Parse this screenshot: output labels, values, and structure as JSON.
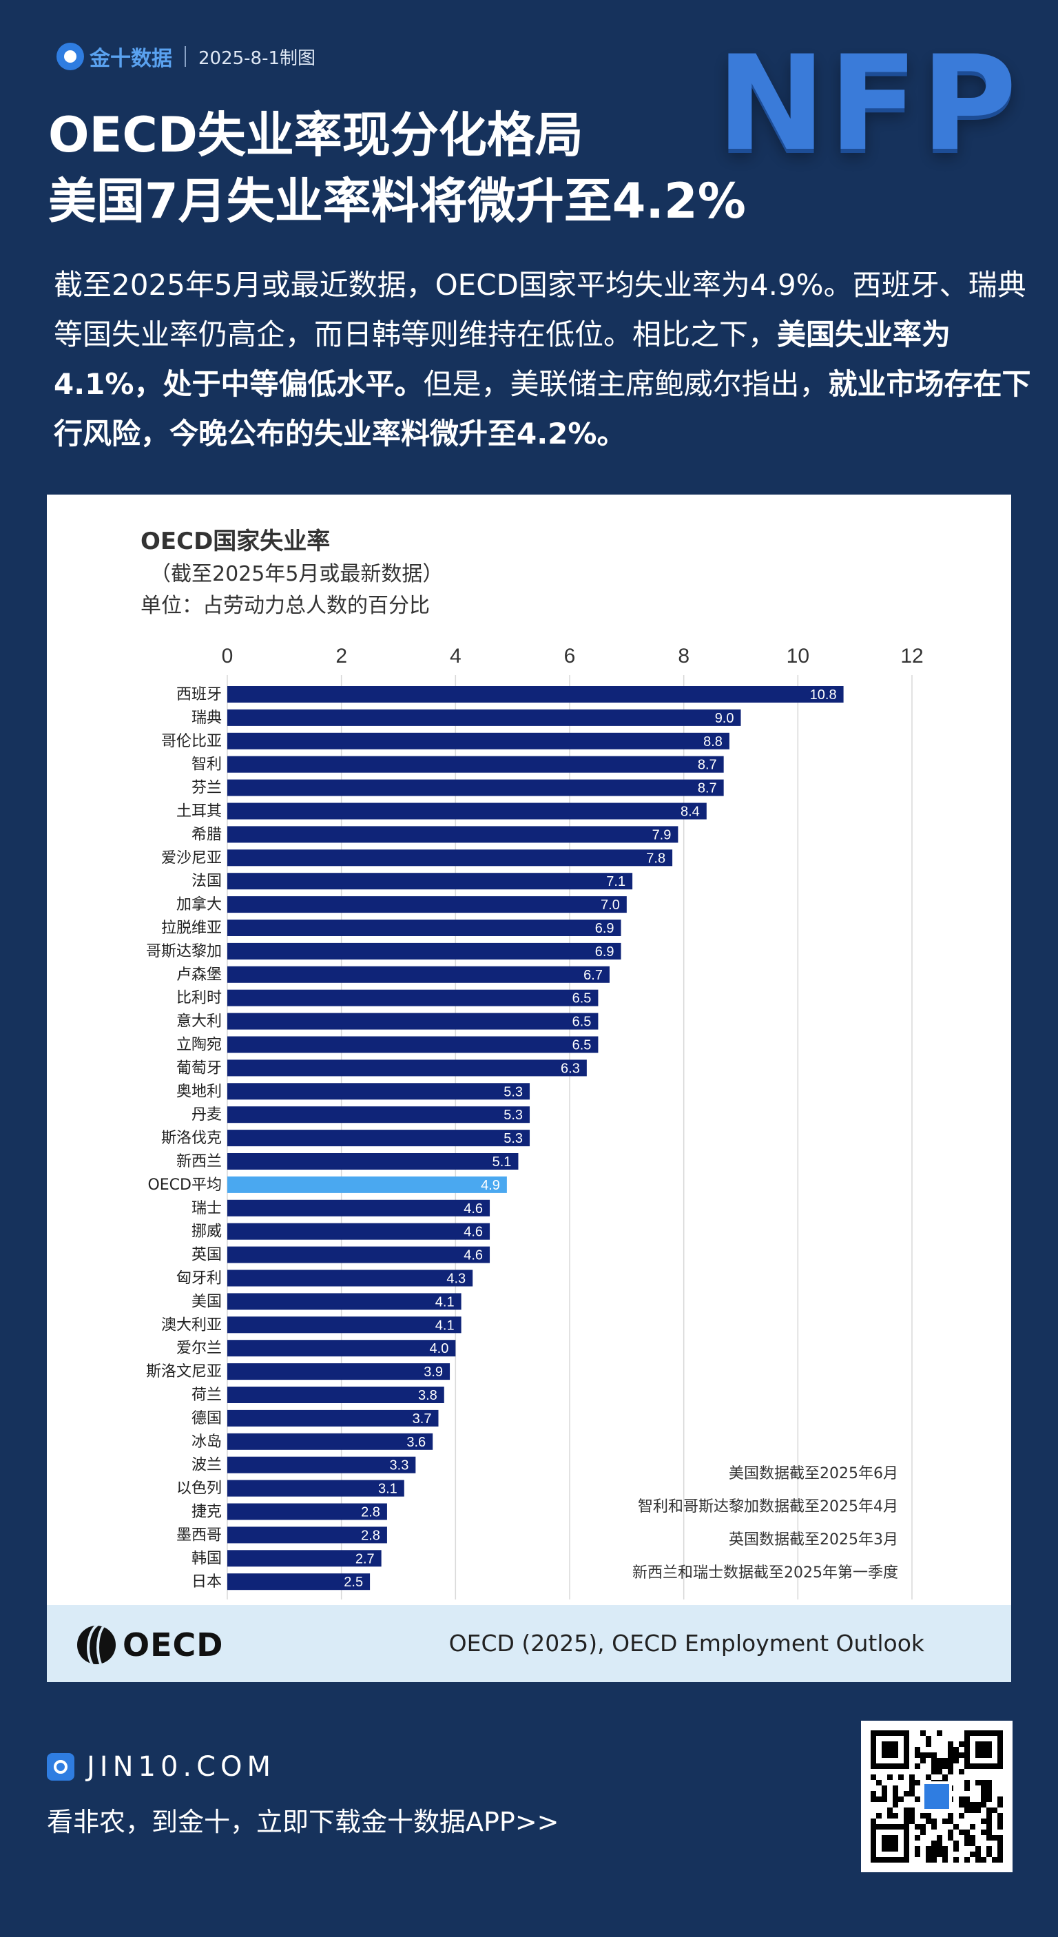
{
  "header": {
    "logo_text": "金十数据",
    "date": "2025-8-1制图",
    "badge": "NFP"
  },
  "headline": {
    "line1": "OECD失业率现分化格局",
    "line2": "美国7月失业率料将微升至4.2%"
  },
  "intro": {
    "p1": "截至2025年5月或最近数据，OECD国家平均失业率为4.9%。西班牙、瑞典等国失业率仍高企，而日韩等则维持在低位。相比之下，",
    "p2_bold": "美国失业率为4.1%，处于中等偏低水平。",
    "p3": "但是，美联储主席鲍威尔指出，",
    "p4_bold": "就业市场存在下行风险，今晚公布的失业率料微升至4.2%。"
  },
  "chart_data": {
    "type": "bar",
    "orientation": "horizontal",
    "title": "OECD国家失业率",
    "subtitle": "（截至2025年5月或最新数据）",
    "unit": "单位：占劳动力总人数的百分比",
    "xlim": [
      0,
      12
    ],
    "ticks": [
      "0",
      "2",
      "4",
      "6",
      "8",
      "10",
      "12"
    ],
    "grid": true,
    "categories": [
      "西班牙",
      "瑞典",
      "哥伦比亚",
      "智利",
      "芬兰",
      "土耳其",
      "希腊",
      "爱沙尼亚",
      "法国",
      "加拿大",
      "拉脱维亚",
      "哥斯达黎加",
      "卢森堡",
      "比利时",
      "意大利",
      "立陶宛",
      "葡萄牙",
      "奥地利",
      "丹麦",
      "斯洛伐克",
      "新西兰",
      "OECD平均",
      "瑞士",
      "挪威",
      "英国",
      "匈牙利",
      "美国",
      "澳大利亚",
      "爱尔兰",
      "斯洛文尼亚",
      "荷兰",
      "德国",
      "冰岛",
      "波兰",
      "以色列",
      "捷克",
      "墨西哥",
      "韩国",
      "日本"
    ],
    "values": [
      10.8,
      9.0,
      8.8,
      8.7,
      8.7,
      8.4,
      7.9,
      7.8,
      7.1,
      7.0,
      6.9,
      6.9,
      6.7,
      6.5,
      6.5,
      6.5,
      6.3,
      5.3,
      5.3,
      5.3,
      5.1,
      4.9,
      4.6,
      4.6,
      4.6,
      4.3,
      4.1,
      4.1,
      4.0,
      3.9,
      3.8,
      3.7,
      3.6,
      3.3,
      3.1,
      2.8,
      2.8,
      2.7,
      2.5
    ],
    "value_labels": [
      "10.8",
      "9.0",
      "8.8",
      "8.7",
      "8.7",
      "8.4",
      "7.9",
      "7.8",
      "7.1",
      "7.0",
      "6.9",
      "6.9",
      "6.7",
      "6.5",
      "6.5",
      "6.5",
      "6.3",
      "5.3",
      "5.3",
      "5.3",
      "5.1",
      "4.9",
      "4.6",
      "4.6",
      "4.6",
      "4.3",
      "4.1",
      "4.1",
      "4.0",
      "3.9",
      "3.8",
      "3.7",
      "3.6",
      "3.3",
      "3.1",
      "2.8",
      "2.8",
      "2.7",
      "2.5"
    ],
    "highlight_category": "OECD平均",
    "colors": {
      "bar": "#0f2478",
      "highlight": "#4aa8f0",
      "label": "#ffffff"
    },
    "notes": [
      "美国数据截至2025年6月",
      "智利和哥斯达黎加数据截至2025年4月",
      "英国数据截至2025年3月",
      "新西兰和瑞士数据截至2025年第一季度"
    ],
    "source": "OECD (2025), OECD Employment Outlook",
    "logo": "OECD"
  },
  "footer": {
    "site": "JIN10.COM",
    "cta": "看非农，到金十，立即下载金十数据APP>>"
  },
  "colors": {
    "background": "#16325c",
    "accent": "#2f7de1"
  }
}
